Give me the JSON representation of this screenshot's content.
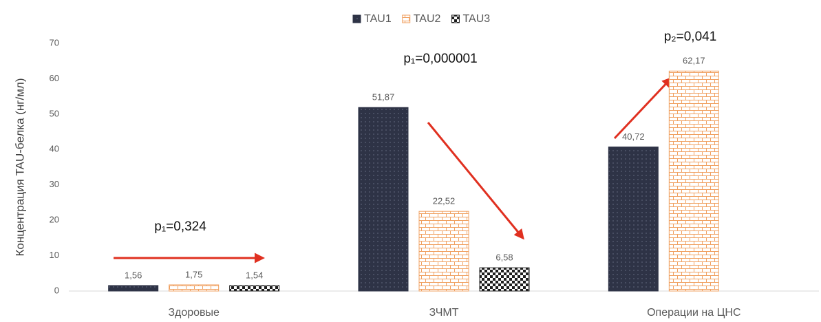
{
  "chart_data": {
    "type": "bar",
    "y_label": "Концентрация TAU-белка (нг/мл)",
    "categories": [
      "Здоровые",
      "ЗЧМТ",
      "Операции на ЦНС"
    ],
    "series": [
      {
        "name": "TAU1",
        "color": "#2e3346",
        "values": [
          1.56,
          51.87,
          40.72
        ],
        "value_labels": [
          "1,56",
          "51,87",
          "40,72"
        ]
      },
      {
        "name": "TAU2",
        "color": "#f0a060",
        "values": [
          1.75,
          22.52,
          62.17
        ],
        "value_labels": [
          "1,75",
          "22,52",
          "62,17"
        ]
      },
      {
        "name": "TAU3",
        "color": "#1e1e1e",
        "values": [
          1.54,
          6.58,
          null
        ],
        "value_labels": [
          "1,54",
          "6,58",
          null
        ]
      }
    ],
    "annotations": [
      "p₁=0,324",
      "p₁=0,000001",
      "p₂=0,041"
    ],
    "ylim": [
      0,
      70
    ],
    "yticks": [
      0,
      10,
      20,
      30,
      40,
      50,
      60,
      70
    ],
    "grid": false,
    "legend": "top"
  }
}
